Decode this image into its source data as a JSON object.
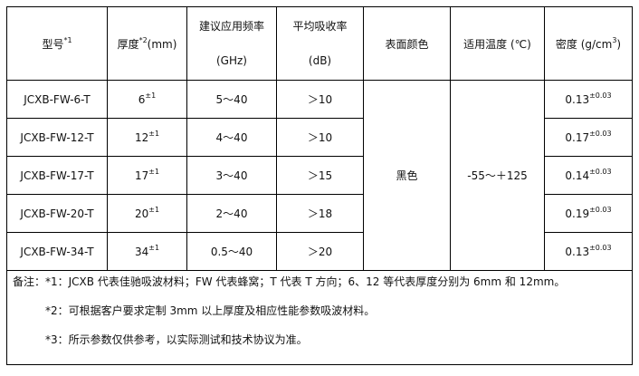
{
  "header": {
    "model": "型号",
    "model_sup": "*1",
    "thickness": "厚度",
    "thickness_sup": "*2",
    "thickness_unit": "(mm)",
    "freq": "建议应用频率",
    "freq_unit": "(GHz)",
    "absorb": "平均吸收率",
    "absorb_unit": "(dB)",
    "color": "表面颜色",
    "temp": "适用温度 (℃)",
    "density": "密度 (g/cm",
    "density_sup": "3",
    "density_close": ")"
  },
  "rows": [
    {
      "model": "JCXB-FW-6-T",
      "thickness": "6",
      "tol": "±1",
      "freq": "5～40",
      "absorb": "＞10",
      "density": "0.13",
      "dtol": "±0.03"
    },
    {
      "model": "JCXB-FW-12-T",
      "thickness": "12",
      "tol": "±1",
      "freq": "4～40",
      "absorb": "＞10",
      "density": "0.17",
      "dtol": "±0.03"
    },
    {
      "model": "JCXB-FW-17-T",
      "thickness": "17",
      "tol": "±1",
      "freq": "3～40",
      "absorb": "＞15",
      "density": "0.14",
      "dtol": "±0.03"
    },
    {
      "model": "JCXB-FW-20-T",
      "thickness": "20",
      "tol": "±1",
      "freq": "2～40",
      "absorb": "＞18",
      "density": "0.19",
      "dtol": "±0.03"
    },
    {
      "model": "JCXB-FW-34-T",
      "thickness": "34",
      "tol": "±1",
      "freq": "0.5～40",
      "absorb": "＞20",
      "density": "0.13",
      "dtol": "±0.03"
    }
  ],
  "merged": {
    "color": "黑色",
    "temp": "-55～＋125"
  },
  "notes": [
    "备注：*1：JCXB 代表佳驰吸波材料；FW 代表蜂窝；T 代表 T 方向；6、12 等代表厚度分别为 6mm 和 12mm。",
    "*2：可根据客户要求定制 3mm 以上厚度及相应性能参数吸波材料。",
    "*3：所示参数仅供参考，以实际测试和技术协议为准。"
  ]
}
